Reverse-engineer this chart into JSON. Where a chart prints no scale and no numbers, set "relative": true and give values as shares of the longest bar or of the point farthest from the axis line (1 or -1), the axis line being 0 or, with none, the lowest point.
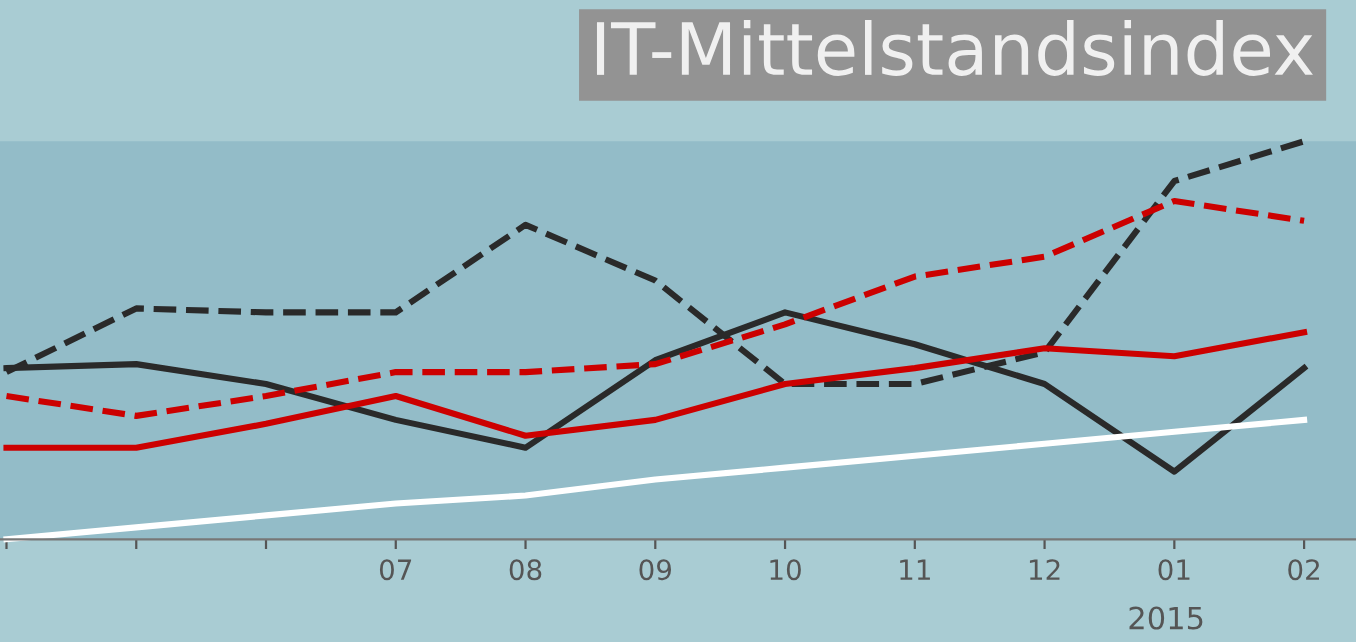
{
  "chart_data": {
    "type": "line",
    "title": "IT-Mittelstandsindex",
    "relative": true,
    "legend": false,
    "marker": "none",
    "categories": [
      null,
      null,
      null,
      "07",
      "08",
      "09",
      "10",
      "11",
      "12",
      "01",
      "02"
    ],
    "annotations": [
      "2015"
    ],
    "series": [
      {
        "color": "#2a2a2a",
        "line_style": "dashed",
        "values": [
          0.42,
          0.58,
          0.57,
          0.57,
          0.79,
          0.65,
          0.39,
          0.39,
          0.47,
          0.9,
          1.0
        ]
      },
      {
        "color": "#2a2a2a",
        "line_style": "solid",
        "values": [
          0.43,
          0.44,
          0.39,
          0.3,
          0.23,
          0.45,
          0.57,
          0.49,
          0.39,
          0.17,
          0.43
        ]
      },
      {
        "color": "#cc0000",
        "line_style": "dashed",
        "values": [
          0.36,
          0.31,
          0.36,
          0.42,
          0.42,
          0.44,
          0.54,
          0.66,
          0.71,
          0.85,
          0.8
        ]
      },
      {
        "color": "#cc0000",
        "line_style": "solid",
        "values": [
          0.23,
          0.23,
          0.29,
          0.36,
          0.26,
          0.3,
          0.39,
          0.43,
          0.48,
          0.46,
          0.52
        ]
      },
      {
        "color": "#ffffff",
        "line_style": "solid",
        "values": [
          0.0,
          0.03,
          0.06,
          0.09,
          0.11,
          0.15,
          0.18,
          0.21,
          0.24,
          0.27,
          0.3
        ]
      }
    ]
  }
}
